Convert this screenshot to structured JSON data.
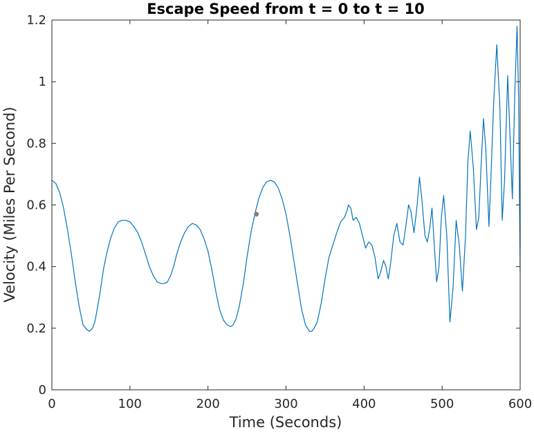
{
  "chart_data": {
    "type": "line",
    "title": "Escape Speed from t = 0 to t = 10",
    "xlabel": "Time (Seconds)",
    "ylabel": "Velocity (Miles Per Second)",
    "xlim": [
      0,
      600
    ],
    "ylim": [
      0,
      1.2
    ],
    "xticks": [
      0,
      100,
      200,
      300,
      400,
      500,
      600
    ],
    "xtick_labels": [
      "0",
      "100",
      "200",
      "300",
      "400",
      "500",
      "600"
    ],
    "yticks": [
      0,
      0.2,
      0.4,
      0.6,
      0.8,
      1.0,
      1.2
    ],
    "ytick_labels": [
      "0",
      "0.2",
      "0.4",
      "0.6",
      "0.8",
      "1",
      "1.2"
    ],
    "grid": false,
    "line_color": "#0072BD",
    "marker_color": "#808080",
    "series": [
      {
        "x": [
          0,
          5,
          10,
          15,
          20,
          25,
          30,
          35,
          40,
          45,
          48,
          52,
          55,
          58,
          62,
          66,
          70,
          75,
          80,
          85,
          90,
          95,
          100,
          105,
          110,
          115,
          120,
          125,
          130,
          135,
          140,
          144,
          148,
          152,
          156,
          160,
          165,
          170,
          175,
          180,
          185,
          190,
          195,
          200,
          205,
          210,
          215,
          220,
          225,
          229,
          232,
          236,
          240,
          245,
          250,
          255,
          260,
          265,
          270,
          275,
          280,
          285,
          290,
          295,
          300,
          305,
          310,
          315,
          320,
          325,
          330,
          333,
          336,
          340,
          345,
          350,
          355,
          360,
          365,
          370,
          375,
          378,
          380,
          383,
          386,
          390,
          394,
          398,
          402,
          406,
          410,
          414,
          418,
          421,
          425,
          428,
          431,
          434,
          438,
          442,
          446,
          450,
          454,
          457,
          460,
          464,
          468,
          471,
          474,
          478,
          481,
          484,
          487,
          490,
          493,
          496,
          499,
          502,
          506,
          510,
          514,
          518,
          522,
          526,
          530,
          533,
          536,
          540,
          544,
          547,
          550,
          553,
          556,
          560,
          563,
          566,
          570,
          574,
          577,
          580,
          584,
          587,
          590,
          593,
          596,
          598,
          600
        ],
        "y": [
          0.68,
          0.67,
          0.64,
          0.59,
          0.52,
          0.44,
          0.35,
          0.27,
          0.21,
          0.195,
          0.19,
          0.2,
          0.22,
          0.26,
          0.32,
          0.39,
          0.44,
          0.49,
          0.525,
          0.545,
          0.55,
          0.55,
          0.545,
          0.53,
          0.51,
          0.48,
          0.44,
          0.4,
          0.37,
          0.35,
          0.345,
          0.345,
          0.35,
          0.37,
          0.4,
          0.44,
          0.48,
          0.51,
          0.53,
          0.54,
          0.535,
          0.52,
          0.49,
          0.45,
          0.39,
          0.32,
          0.26,
          0.225,
          0.21,
          0.205,
          0.21,
          0.23,
          0.27,
          0.34,
          0.43,
          0.51,
          0.57,
          0.62,
          0.655,
          0.675,
          0.68,
          0.675,
          0.655,
          0.62,
          0.57,
          0.5,
          0.42,
          0.34,
          0.26,
          0.21,
          0.19,
          0.19,
          0.2,
          0.22,
          0.28,
          0.36,
          0.43,
          0.47,
          0.51,
          0.545,
          0.56,
          0.58,
          0.6,
          0.59,
          0.55,
          0.56,
          0.54,
          0.5,
          0.46,
          0.48,
          0.47,
          0.43,
          0.36,
          0.38,
          0.42,
          0.4,
          0.36,
          0.41,
          0.5,
          0.54,
          0.48,
          0.47,
          0.54,
          0.6,
          0.58,
          0.51,
          0.6,
          0.69,
          0.62,
          0.5,
          0.48,
          0.52,
          0.59,
          0.47,
          0.35,
          0.4,
          0.56,
          0.63,
          0.5,
          0.22,
          0.33,
          0.55,
          0.47,
          0.32,
          0.5,
          0.74,
          0.84,
          0.72,
          0.52,
          0.56,
          0.73,
          0.88,
          0.78,
          0.53,
          0.72,
          0.93,
          1.12,
          0.92,
          0.55,
          0.68,
          1.02,
          0.82,
          0.62,
          0.95,
          1.18,
          0.95,
          0.38
        ],
        "color": "#0072BD"
      }
    ],
    "marker_point": {
      "x": 262,
      "y": 0.57
    }
  }
}
